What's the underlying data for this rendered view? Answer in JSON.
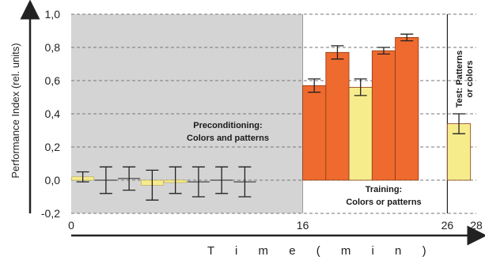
{
  "chart_data": {
    "type": "bar",
    "ylabel": "Performance Index (rel. units)",
    "xlabel": "T i m e   ( m i n )",
    "ylim": [
      -0.2,
      1.0
    ],
    "yticks": [
      1.0,
      0.8,
      0.6,
      0.4,
      0.2,
      0.0,
      -0.2
    ],
    "ytick_labels": [
      "1,0",
      "0,8",
      "0,6",
      "0,4",
      "0,2",
      "0,0",
      "-0,2"
    ],
    "xticks": [
      0,
      16,
      26,
      28
    ],
    "xtick_labels": [
      "0",
      "16",
      "26",
      "28"
    ],
    "xlim": [
      0,
      28
    ],
    "grid": true,
    "colors": {
      "preconditioning_bg": "#d4d4d4",
      "training_bar": "#ef6a2e",
      "yellow_bar": "#f7ec8c",
      "error_bar": "#222222"
    },
    "phases": [
      {
        "name": "Preconditioning",
        "label_lines": [
          "Preconditioning:",
          "Colors and patterns"
        ],
        "start": 0,
        "end": 16
      },
      {
        "name": "Training",
        "label_lines": [
          "Training:",
          "Colors or patterns"
        ],
        "start": 16,
        "end": 26
      },
      {
        "name": "Test",
        "label_lines": [
          "Test: Patterns",
          "or colors"
        ],
        "start": 26,
        "end": 28
      }
    ],
    "preconditioning_points": [
      {
        "t": 0.8,
        "value": 0.02,
        "err": 0.03,
        "color": "yellow"
      },
      {
        "t": 2.4,
        "value": 0.0,
        "err": 0.08,
        "color": "none"
      },
      {
        "t": 4.0,
        "value": 0.01,
        "err": 0.07,
        "color": "none"
      },
      {
        "t": 5.6,
        "value": -0.03,
        "err": 0.09,
        "color": "yellow"
      },
      {
        "t": 7.2,
        "value": 0.0,
        "err": 0.08,
        "color": "yellow"
      },
      {
        "t": 8.8,
        "value": -0.01,
        "err": 0.09,
        "color": "none"
      },
      {
        "t": 10.4,
        "value": 0.0,
        "err": 0.08,
        "color": "none"
      },
      {
        "t": 12.0,
        "value": -0.01,
        "err": 0.09,
        "color": "none"
      }
    ],
    "training_bars": [
      {
        "t0": 16.0,
        "t1": 17.6,
        "value": 0.57,
        "err": 0.04,
        "color": "orange"
      },
      {
        "t0": 17.6,
        "t1": 19.2,
        "value": 0.77,
        "err": 0.04,
        "color": "orange"
      },
      {
        "t0": 19.2,
        "t1": 20.8,
        "value": 0.56,
        "err": 0.05,
        "color": "yellow"
      },
      {
        "t0": 20.8,
        "t1": 22.4,
        "value": 0.78,
        "err": 0.02,
        "color": "orange"
      },
      {
        "t0": 22.4,
        "t1": 24.0,
        "value": 0.86,
        "err": 0.02,
        "color": "orange"
      }
    ],
    "test_bars": [
      {
        "t0": 26.0,
        "t1": 27.6,
        "value": 0.34,
        "err": 0.06,
        "color": "yellow"
      }
    ]
  }
}
